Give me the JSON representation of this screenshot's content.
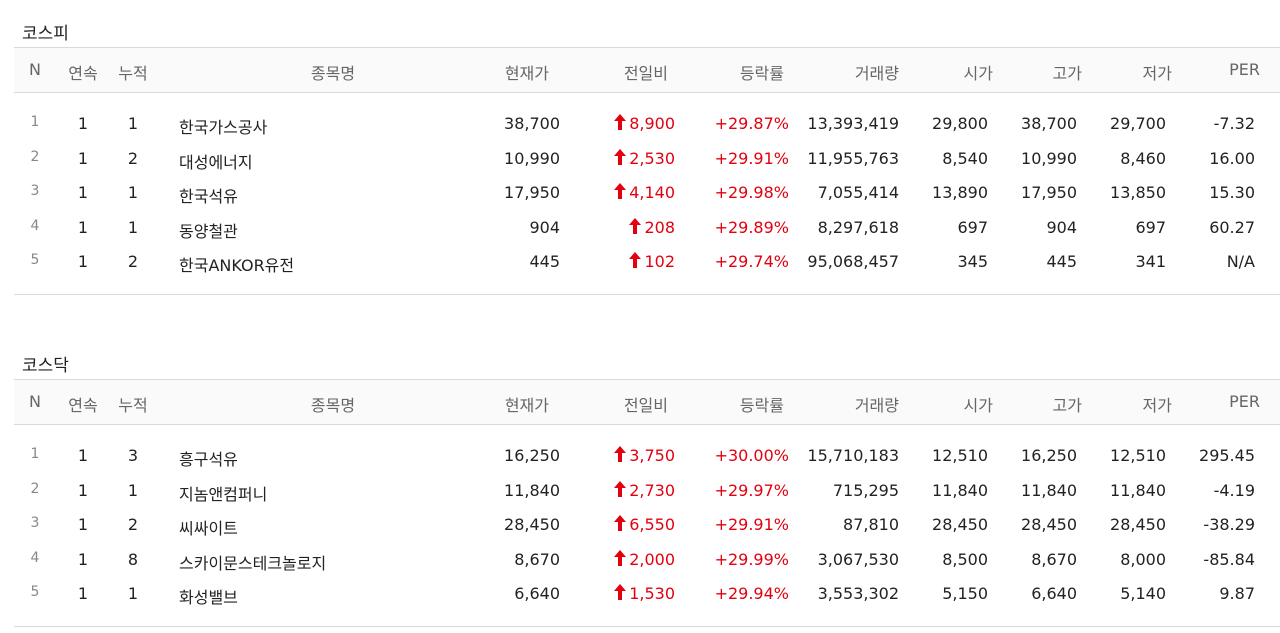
{
  "colors": {
    "up": "#e3000f",
    "header_bg": "#fafafa",
    "border": "#d9d9d9"
  },
  "headers": {
    "n": "N",
    "consecutive": "연속",
    "cumulative": "누적",
    "name": "종목명",
    "current": "현재가",
    "diff": "전일비",
    "rate": "등락률",
    "volume": "거래량",
    "open": "시가",
    "high": "고가",
    "low": "저가",
    "per": "PER"
  },
  "sections": [
    {
      "title": "코스피",
      "rows": [
        {
          "n": "1",
          "consecutive": "1",
          "cumulative": "1",
          "name": "한국가스공사",
          "current": "38,700",
          "diff": "8,900",
          "rate": "+29.87%",
          "volume": "13,393,419",
          "open": "29,800",
          "high": "38,700",
          "low": "29,700",
          "per": "-7.32"
        },
        {
          "n": "2",
          "consecutive": "1",
          "cumulative": "2",
          "name": "대성에너지",
          "current": "10,990",
          "diff": "2,530",
          "rate": "+29.91%",
          "volume": "11,955,763",
          "open": "8,540",
          "high": "10,990",
          "low": "8,460",
          "per": "16.00"
        },
        {
          "n": "3",
          "consecutive": "1",
          "cumulative": "1",
          "name": "한국석유",
          "current": "17,950",
          "diff": "4,140",
          "rate": "+29.98%",
          "volume": "7,055,414",
          "open": "13,890",
          "high": "17,950",
          "low": "13,850",
          "per": "15.30"
        },
        {
          "n": "4",
          "consecutive": "1",
          "cumulative": "1",
          "name": "동양철관",
          "current": "904",
          "diff": "208",
          "rate": "+29.89%",
          "volume": "8,297,618",
          "open": "697",
          "high": "904",
          "low": "697",
          "per": "60.27"
        },
        {
          "n": "5",
          "consecutive": "1",
          "cumulative": "2",
          "name": "한국ANKOR유전",
          "current": "445",
          "diff": "102",
          "rate": "+29.74%",
          "volume": "95,068,457",
          "open": "345",
          "high": "445",
          "low": "341",
          "per": "N/A"
        }
      ]
    },
    {
      "title": "코스닥",
      "rows": [
        {
          "n": "1",
          "consecutive": "1",
          "cumulative": "3",
          "name": "흥구석유",
          "current": "16,250",
          "diff": "3,750",
          "rate": "+30.00%",
          "volume": "15,710,183",
          "open": "12,510",
          "high": "16,250",
          "low": "12,510",
          "per": "295.45"
        },
        {
          "n": "2",
          "consecutive": "1",
          "cumulative": "1",
          "name": "지놈앤컴퍼니",
          "current": "11,840",
          "diff": "2,730",
          "rate": "+29.97%",
          "volume": "715,295",
          "open": "11,840",
          "high": "11,840",
          "low": "11,840",
          "per": "-4.19"
        },
        {
          "n": "3",
          "consecutive": "1",
          "cumulative": "2",
          "name": "씨싸이트",
          "current": "28,450",
          "diff": "6,550",
          "rate": "+29.91%",
          "volume": "87,810",
          "open": "28,450",
          "high": "28,450",
          "low": "28,450",
          "per": "-38.29"
        },
        {
          "n": "4",
          "consecutive": "1",
          "cumulative": "8",
          "name": "스카이문스테크놀로지",
          "current": "8,670",
          "diff": "2,000",
          "rate": "+29.99%",
          "volume": "3,067,530",
          "open": "8,500",
          "high": "8,670",
          "low": "8,000",
          "per": "-85.84"
        },
        {
          "n": "5",
          "consecutive": "1",
          "cumulative": "1",
          "name": "화성밸브",
          "current": "6,640",
          "diff": "1,530",
          "rate": "+29.94%",
          "volume": "3,553,302",
          "open": "5,150",
          "high": "6,640",
          "low": "5,140",
          "per": "9.87"
        }
      ]
    }
  ]
}
